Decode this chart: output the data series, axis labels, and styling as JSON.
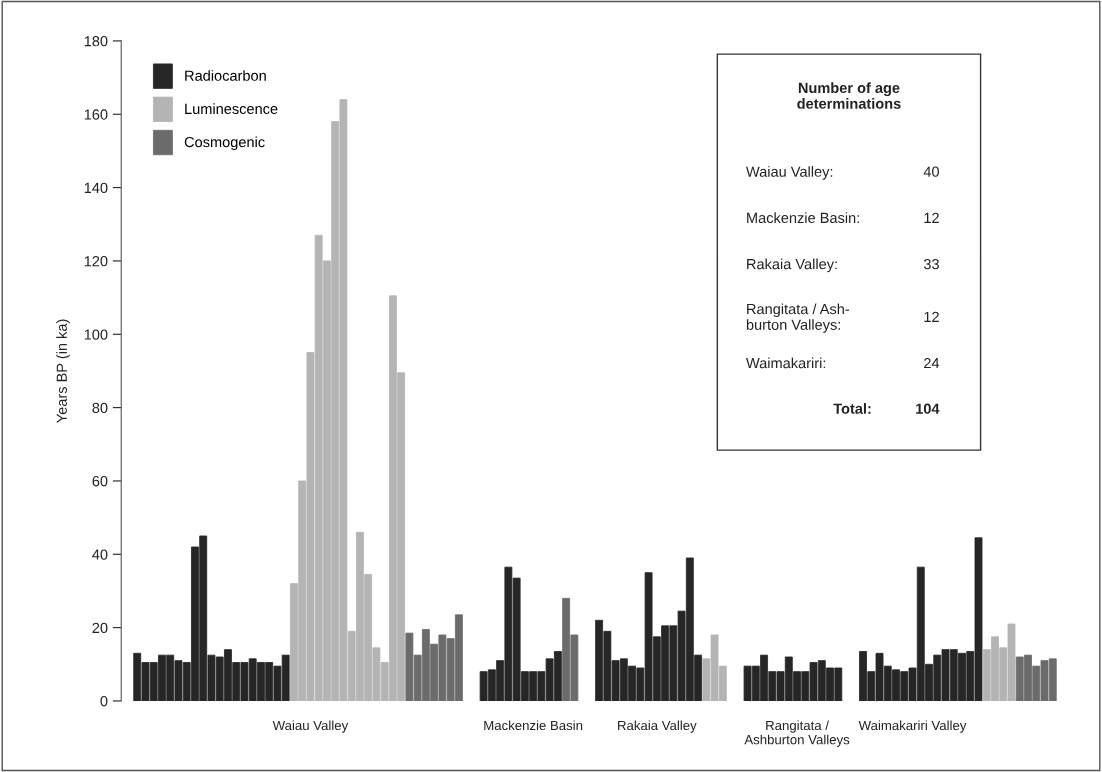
{
  "chart_data": {
    "type": "bar",
    "ylabel": "Years BP (in ka)",
    "categories": [
      null,
      null,
      null,
      null,
      null,
      null,
      null,
      null,
      null,
      null,
      null,
      null,
      null,
      null,
      null,
      null,
      null,
      null,
      null,
      null,
      null,
      "Waiau Valley",
      null,
      null,
      null,
      null,
      null,
      null,
      null,
      null,
      null,
      null,
      null,
      null,
      null,
      null,
      null,
      null,
      null,
      null,
      null,
      null,
      null,
      null,
      null,
      null,
      null,
      null,
      "Mackenzie Basin",
      null,
      null,
      null,
      null,
      null,
      null,
      null,
      null,
      null,
      null,
      null,
      null,
      null,
      null,
      "Rakaia Valley",
      null,
      null,
      null,
      null,
      null,
      null,
      null,
      null,
      null,
      null,
      null,
      null,
      null,
      null,
      null,
      null,
      "Rangitata /\nAshburton Valleys",
      null,
      null,
      null,
      null,
      null,
      null,
      null,
      null,
      null,
      null,
      null,
      null,
      null,
      "Waimakariri Valley",
      null,
      null,
      null,
      null,
      null,
      null,
      null,
      null,
      null,
      null,
      null,
      null,
      null,
      null,
      null,
      null,
      null
    ],
    "series": [
      {
        "name": "Radiocarbon",
        "color": "#262626",
        "values": [
          13,
          10.5,
          10.5,
          12.5,
          12.5,
          11,
          10.5,
          42,
          45,
          12.5,
          12,
          14,
          10.5,
          10.5,
          11.5,
          10.5,
          10.5,
          9.5,
          12.5,
          null,
          null,
          null,
          null,
          null,
          null,
          null,
          null,
          null,
          null,
          null,
          null,
          null,
          null,
          null,
          null,
          null,
          null,
          null,
          null,
          null,
          null,
          null,
          8,
          8.5,
          11,
          36.5,
          33.5,
          8,
          8,
          8,
          11.5,
          13.5,
          null,
          null,
          null,
          null,
          22,
          19,
          11,
          11.5,
          9.5,
          9,
          35,
          17.5,
          20.5,
          20.5,
          24.5,
          39,
          12.5,
          null,
          null,
          null,
          null,
          null,
          9.5,
          9.5,
          12.5,
          8,
          8,
          12,
          8,
          8,
          10.5,
          11,
          9,
          9,
          null,
          null,
          13.5,
          8,
          13,
          9.5,
          8.5,
          8,
          9,
          36.5,
          10,
          12.5,
          14,
          14,
          13,
          13.5,
          44.5,
          null,
          null,
          null,
          null,
          null,
          null,
          null,
          null,
          null
        ]
      },
      {
        "name": "Luminescence",
        "color": "#b4b4b4",
        "values": [
          null,
          null,
          null,
          null,
          null,
          null,
          null,
          null,
          null,
          null,
          null,
          null,
          null,
          null,
          null,
          null,
          null,
          null,
          null,
          32,
          60,
          95,
          127,
          120,
          158,
          164,
          19,
          46,
          34.5,
          14.5,
          10.5,
          110.5,
          89.5,
          null,
          null,
          null,
          null,
          null,
          null,
          null,
          null,
          null,
          null,
          null,
          null,
          null,
          null,
          null,
          null,
          null,
          null,
          null,
          null,
          null,
          null,
          null,
          null,
          null,
          null,
          null,
          null,
          null,
          null,
          null,
          null,
          null,
          null,
          null,
          null,
          11.5,
          18,
          9.5,
          null,
          null,
          null,
          null,
          null,
          null,
          null,
          null,
          null,
          null,
          null,
          null,
          null,
          null,
          null,
          null,
          null,
          null,
          null,
          null,
          null,
          null,
          null,
          null,
          null,
          null,
          null,
          null,
          null,
          null,
          null,
          14,
          17.5,
          14.5,
          21,
          null,
          null,
          null,
          null,
          null
        ]
      },
      {
        "name": "Cosmogenic",
        "color": "#6b6b6b",
        "values": [
          null,
          null,
          null,
          null,
          null,
          null,
          null,
          null,
          null,
          null,
          null,
          null,
          null,
          null,
          null,
          null,
          null,
          null,
          null,
          null,
          null,
          null,
          null,
          null,
          null,
          null,
          null,
          null,
          null,
          null,
          null,
          null,
          null,
          18.5,
          12.5,
          19.5,
          15.5,
          18,
          17,
          23.5,
          null,
          null,
          null,
          null,
          null,
          null,
          null,
          null,
          null,
          null,
          null,
          null,
          28,
          18,
          null,
          null,
          null,
          null,
          null,
          null,
          null,
          null,
          null,
          null,
          null,
          null,
          null,
          null,
          null,
          null,
          null,
          null,
          null,
          null,
          null,
          null,
          null,
          null,
          null,
          null,
          null,
          null,
          null,
          null,
          null,
          null,
          null,
          null,
          null,
          null,
          null,
          null,
          null,
          null,
          null,
          null,
          null,
          null,
          null,
          null,
          null,
          null,
          null,
          null,
          null,
          null,
          null,
          12,
          12.5,
          9.5,
          11,
          11.5
        ]
      }
    ],
    "ylim": [
      0,
      180
    ],
    "yticks": [
      0,
      20,
      40,
      60,
      80,
      100,
      120,
      140,
      160,
      180
    ],
    "legend": "top left",
    "annotations": [
      "Number of age\ndeterminations",
      "Waiau Valley:",
      "40",
      "Mackenzie Basin:",
      "12",
      "Rakaia Valley:",
      "33",
      "Rangitata / Ash-\nburton Valleys:",
      "12",
      "Waimakariri:",
      "24",
      "Total:",
      "104"
    ]
  }
}
